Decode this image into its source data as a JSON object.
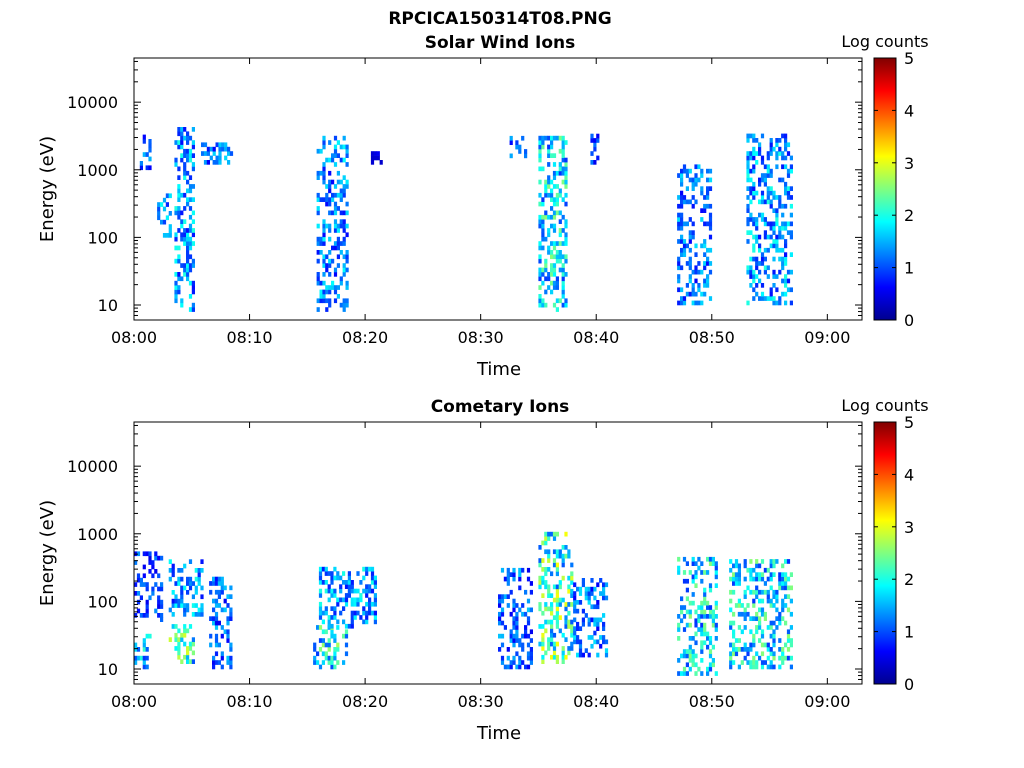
{
  "figure_title": "RPCICA150314T08.PNG",
  "colormap": [
    "#00008f",
    "#0000ff",
    "#0080ff",
    "#00ffff",
    "#80ff80",
    "#ffff00",
    "#ff8000",
    "#ff0000",
    "#800000"
  ],
  "chart_data": [
    {
      "type": "heatmap",
      "title": "Solar Wind Ions",
      "xlabel": "Time",
      "ylabel": "Energy (eV)",
      "xlim": [
        "08:00",
        "09:03"
      ],
      "ylim_log": [
        6,
        45000
      ],
      "x_ticks": [
        "08:00",
        "08:10",
        "08:20",
        "08:30",
        "08:40",
        "08:50",
        "09:00"
      ],
      "y_ticks": [
        "10",
        "100",
        "1000",
        "10000"
      ],
      "colorbar": {
        "label": "Log counts",
        "range": [
          0,
          5
        ],
        "ticks": [
          "0",
          "1",
          "2",
          "3",
          "4",
          "5"
        ]
      },
      "bursts": [
        {
          "t_start": 0.5,
          "t_end": 1.5,
          "e_low": 1000,
          "e_high": 3000,
          "intensity": 1.2
        },
        {
          "t_start": 2.0,
          "t_end": 3.2,
          "e_low": 100,
          "e_high": 400,
          "intensity": 1.5
        },
        {
          "t_start": 3.5,
          "t_end": 5.2,
          "e_low": 8,
          "e_high": 4000,
          "intensity": 1.5
        },
        {
          "t_start": 5.8,
          "t_end": 8.5,
          "e_low": 1200,
          "e_high": 2500,
          "intensity": 1.3
        },
        {
          "t_start": 15.8,
          "t_end": 18.5,
          "e_low": 8,
          "e_high": 3000,
          "intensity": 1.4
        },
        {
          "t_start": 20.5,
          "t_end": 21.5,
          "e_low": 1200,
          "e_high": 1800,
          "intensity": 0.7
        },
        {
          "t_start": 32.5,
          "t_end": 34.0,
          "e_low": 1500,
          "e_high": 3000,
          "intensity": 1.2
        },
        {
          "t_start": 35.0,
          "t_end": 37.5,
          "e_low": 8,
          "e_high": 3000,
          "intensity": 1.9
        },
        {
          "t_start": 39.5,
          "t_end": 40.5,
          "e_low": 1200,
          "e_high": 3000,
          "intensity": 0.9
        },
        {
          "t_start": 47.0,
          "t_end": 50.0,
          "e_low": 10,
          "e_high": 1200,
          "intensity": 1.3
        },
        {
          "t_start": 53.0,
          "t_end": 56.8,
          "e_low": 10,
          "e_high": 3000,
          "intensity": 1.5
        }
      ]
    },
    {
      "type": "heatmap",
      "title": "Cometary Ions",
      "xlabel": "Time",
      "ylabel": "Energy (eV)",
      "xlim": [
        "08:00",
        "09:03"
      ],
      "ylim_log": [
        6,
        45000
      ],
      "x_ticks": [
        "08:00",
        "08:10",
        "08:20",
        "08:30",
        "08:40",
        "08:50",
        "09:00"
      ],
      "y_ticks": [
        "10",
        "100",
        "1000",
        "10000"
      ],
      "colorbar": {
        "label": "Log counts",
        "range": [
          0,
          5
        ],
        "ticks": [
          "0",
          "1",
          "2",
          "3",
          "4",
          "5"
        ]
      },
      "bursts": [
        {
          "t_start": 0.0,
          "t_end": 1.5,
          "e_low": 10,
          "e_high": 30,
          "intensity": 1.6
        },
        {
          "t_start": 0.0,
          "t_end": 2.5,
          "e_low": 50,
          "e_high": 500,
          "intensity": 1.0
        },
        {
          "t_start": 3.0,
          "t_end": 5.2,
          "e_low": 12,
          "e_high": 40,
          "intensity": 2.2
        },
        {
          "t_start": 3.0,
          "t_end": 6.0,
          "e_low": 60,
          "e_high": 400,
          "intensity": 1.5
        },
        {
          "t_start": 6.5,
          "t_end": 8.5,
          "e_low": 10,
          "e_high": 200,
          "intensity": 1.2
        },
        {
          "t_start": 15.5,
          "t_end": 18.5,
          "e_low": 10,
          "e_high": 40,
          "intensity": 2.0
        },
        {
          "t_start": 16.0,
          "t_end": 21.0,
          "e_low": 40,
          "e_high": 300,
          "intensity": 1.5
        },
        {
          "t_start": 31.5,
          "t_end": 34.5,
          "e_low": 10,
          "e_high": 300,
          "intensity": 1.2
        },
        {
          "t_start": 35.0,
          "t_end": 38.0,
          "e_low": 12,
          "e_high": 1000,
          "intensity": 2.3
        },
        {
          "t_start": 38.0,
          "t_end": 41.0,
          "e_low": 15,
          "e_high": 200,
          "intensity": 1.3
        },
        {
          "t_start": 47.0,
          "t_end": 50.5,
          "e_low": 8,
          "e_high": 400,
          "intensity": 1.9
        },
        {
          "t_start": 51.5,
          "t_end": 56.8,
          "e_low": 10,
          "e_high": 400,
          "intensity": 1.9
        }
      ]
    }
  ]
}
